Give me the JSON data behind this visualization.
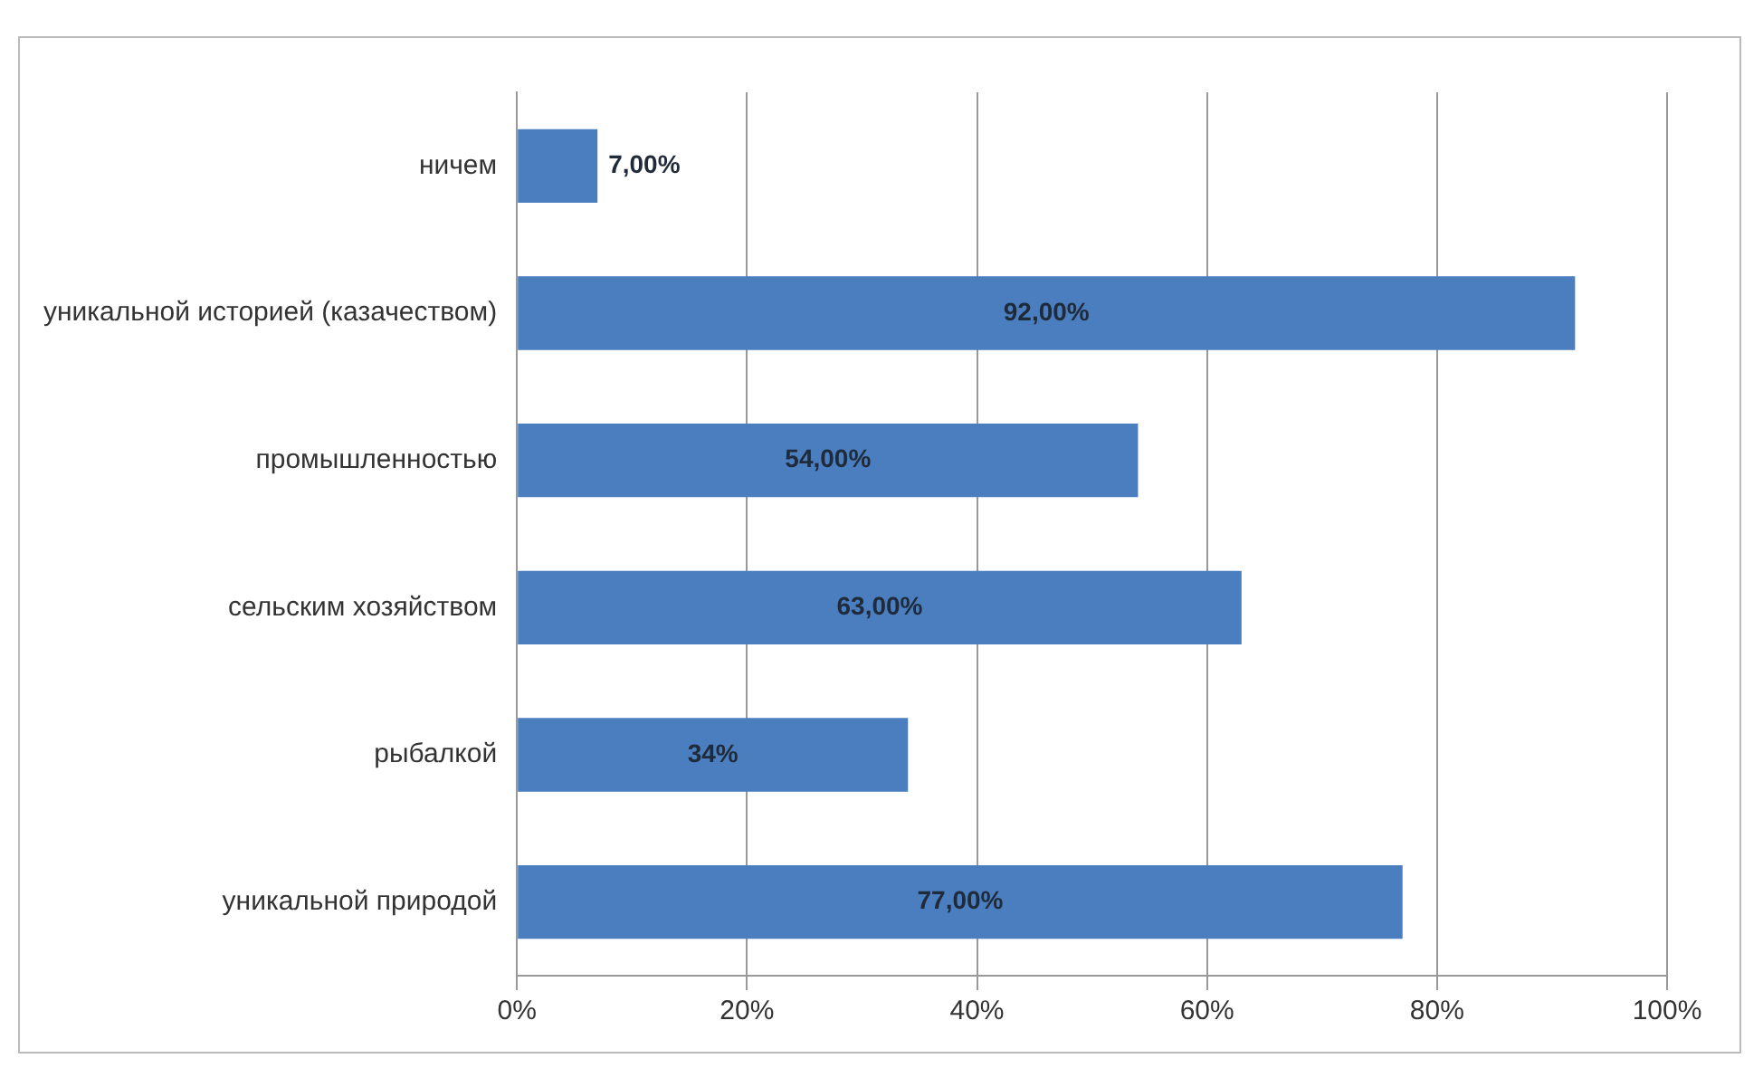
{
  "chart_data": {
    "type": "bar",
    "orientation": "horizontal",
    "categories": [
      "ничем",
      "уникальной историей (казачеством)",
      "промышленностью",
      "сельским хозяйством",
      "рыбалкой",
      "уникальной природой"
    ],
    "values": [
      7,
      92,
      54,
      63,
      34,
      77
    ],
    "value_labels": [
      "7,00%",
      "92,00%",
      "54,00%",
      "63,00%",
      "34%",
      "77,00%"
    ],
    "color": "#4a7ebf",
    "xlim": [
      0,
      100
    ],
    "xticks": [
      {
        "value": 0,
        "label": "0%"
      },
      {
        "value": 20,
        "label": "20%"
      },
      {
        "value": 40,
        "label": "40%"
      },
      {
        "value": 60,
        "label": "60%"
      },
      {
        "value": 80,
        "label": "80%"
      },
      {
        "value": 100,
        "label": "100%"
      }
    ],
    "grid": "x",
    "legend": false
  }
}
